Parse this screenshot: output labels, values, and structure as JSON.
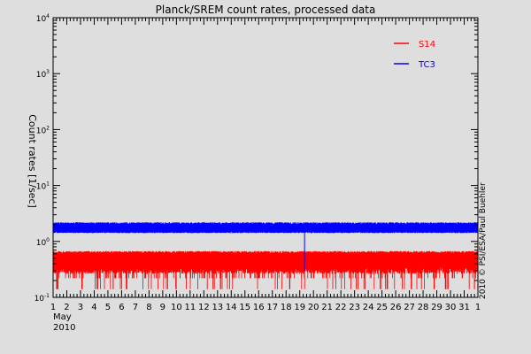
{
  "chart_data": {
    "type": "line",
    "title": "Planck/SREM count rates, processed data",
    "xlabel": "",
    "ylabel": "Count rates [1/sec]",
    "y_scale": "log",
    "ylim": [
      0.1,
      10000
    ],
    "y_ticks": [
      {
        "value": 0.1,
        "base": "10",
        "exp": "-1"
      },
      {
        "value": 1,
        "base": "10",
        "exp": "0"
      },
      {
        "value": 10,
        "base": "10",
        "exp": "1"
      },
      {
        "value": 100,
        "base": "10",
        "exp": "2"
      },
      {
        "value": 1000,
        "base": "10",
        "exp": "3"
      },
      {
        "value": 10000,
        "base": "10",
        "exp": "4"
      }
    ],
    "x_range": [
      1,
      32
    ],
    "x_ticks": [
      "1",
      "2",
      "3",
      "4",
      "5",
      "6",
      "7",
      "8",
      "9",
      "10",
      "11",
      "12",
      "13",
      "14",
      "15",
      "16",
      "17",
      "18",
      "19",
      "20",
      "21",
      "22",
      "23",
      "24",
      "25",
      "26",
      "27",
      "28",
      "29",
      "30",
      "31",
      "1"
    ],
    "x_month": "May",
    "x_year": "2010",
    "grid": false,
    "legend_position": "top-right",
    "series": [
      {
        "name": "S14",
        "color": "#ff0000",
        "typical_min": 0.35,
        "typical_max": 0.6,
        "frequent_drop": 0.22,
        "dropout_min": 0.14
      },
      {
        "name": "TC3",
        "color": "#0000ff",
        "typical_min": 1.5,
        "typical_max": 2.0,
        "spike_x": 19.35,
        "spike_min": 0.3
      }
    ],
    "credit": "2010 © PSI/ESA/Paul Buehler"
  }
}
